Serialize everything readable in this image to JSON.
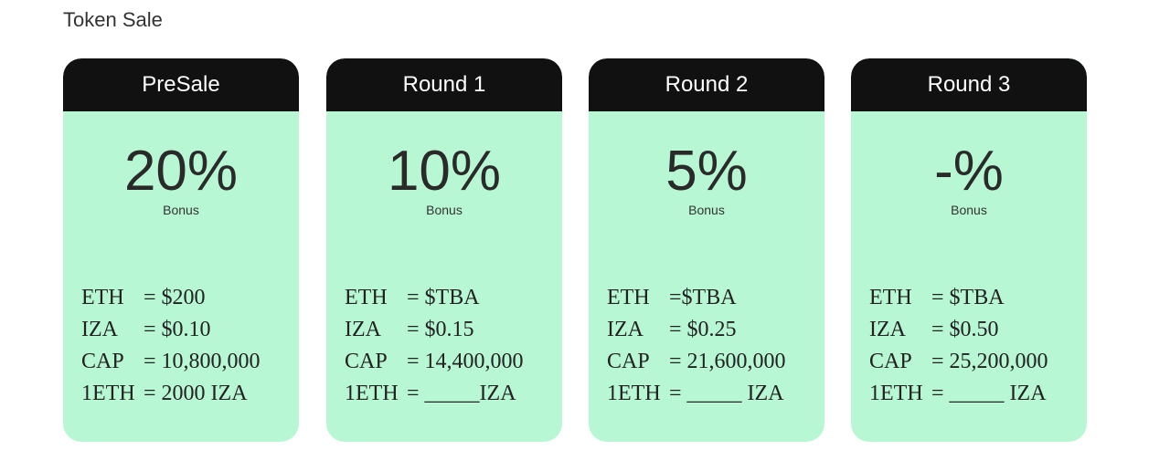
{
  "title": "Token Sale",
  "cards": [
    {
      "name": "PreSale",
      "bonus": "20%",
      "bonus_label": "Bonus",
      "rows": [
        {
          "key": "ETH",
          "value": "= $200"
        },
        {
          "key": "IZA",
          "value": "= $0.10"
        },
        {
          "key": "CAP",
          "value": "= 10,800,000"
        },
        {
          "key": "1ETH",
          "value": "= 2000 IZA"
        }
      ]
    },
    {
      "name": "Round 1",
      "bonus": "10%",
      "bonus_label": "Bonus",
      "rows": [
        {
          "key": "ETH",
          "value": "= $TBA"
        },
        {
          "key": "IZA",
          "value": "= $0.15"
        },
        {
          "key": "CAP",
          "value": "= 14,400,000"
        },
        {
          "key": "1ETH",
          "value": "= _____IZA"
        }
      ]
    },
    {
      "name": "Round 2",
      "bonus": "5%",
      "bonus_label": "Bonus",
      "rows": [
        {
          "key": "ETH",
          "value": "=$TBA"
        },
        {
          "key": "IZA",
          "value": "= $0.25"
        },
        {
          "key": "CAP",
          "value": "= 21,600,000"
        },
        {
          "key": "1ETH",
          "value": "= _____ IZA"
        }
      ]
    },
    {
      "name": "Round 3",
      "bonus": "-%",
      "bonus_label": "Bonus",
      "rows": [
        {
          "key": "ETH",
          "value": "= $TBA"
        },
        {
          "key": "IZA",
          "value": "= $0.50"
        },
        {
          "key": "CAP",
          "value": "= 25,200,000"
        },
        {
          "key": "1ETH",
          "value": "= _____ IZA"
        }
      ]
    }
  ]
}
